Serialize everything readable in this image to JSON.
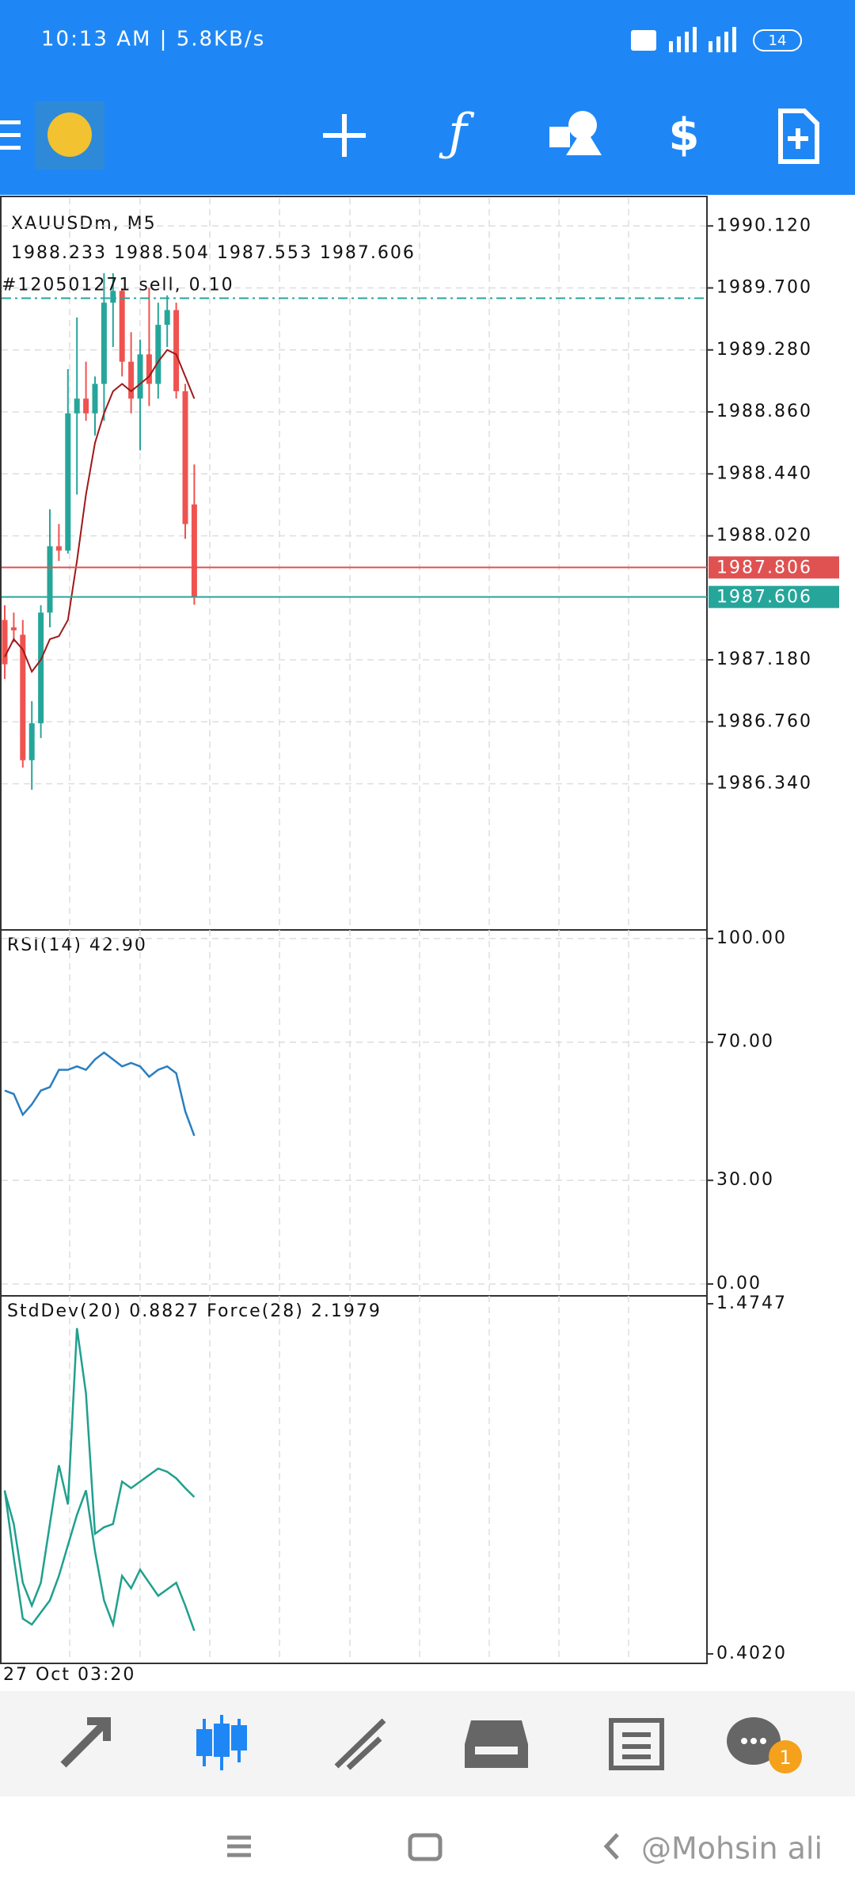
{
  "status_bar": {
    "text": "10:13 AM | 5.8KB/s",
    "battery": "14"
  },
  "chart_data": {
    "type": "candlestick",
    "symbol": "XAUUSDm, M5",
    "ohlc_text": "1988.233 1988.504 1987.553 1987.606",
    "x_label": "27 Oct 03:20",
    "ohlc": [
      [
        1987.45,
        1987.55,
        1987.05,
        1987.15
      ],
      [
        1987.4,
        1987.5,
        1987.3,
        1987.38
      ],
      [
        1987.35,
        1987.45,
        1986.45,
        1986.5
      ],
      [
        1986.5,
        1986.9,
        1986.3,
        1986.75
      ],
      [
        1986.75,
        1987.55,
        1986.65,
        1987.5
      ],
      [
        1987.5,
        1988.2,
        1987.4,
        1987.95
      ],
      [
        1987.95,
        1988.1,
        1987.85,
        1987.92
      ],
      [
        1987.92,
        1989.15,
        1987.9,
        1988.85
      ],
      [
        1988.85,
        1989.5,
        1988.3,
        1988.95
      ],
      [
        1988.95,
        1989.2,
        1988.8,
        1988.85
      ],
      [
        1988.85,
        1989.1,
        1988.7,
        1989.05
      ],
      [
        1989.05,
        1989.8,
        1988.8,
        1989.6
      ],
      [
        1989.6,
        1989.8,
        1989.3,
        1989.68
      ],
      [
        1989.68,
        1989.7,
        1989.1,
        1989.2
      ],
      [
        1989.2,
        1989.4,
        1988.85,
        1988.95
      ],
      [
        1988.95,
        1989.35,
        1988.6,
        1989.25
      ],
      [
        1989.25,
        1989.7,
        1988.9,
        1989.05
      ],
      [
        1989.05,
        1989.6,
        1988.95,
        1989.45
      ],
      [
        1989.45,
        1989.65,
        1989.3,
        1989.55
      ],
      [
        1989.55,
        1989.6,
        1988.95,
        1989.0
      ],
      [
        1989.0,
        1989.05,
        1988.0,
        1988.1
      ],
      [
        1988.233,
        1988.504,
        1987.553,
        1987.606
      ]
    ],
    "colors": {
      "up": "#26a69a",
      "down": "#ef5350"
    },
    "ma": {
      "color": "#a01818",
      "values": [
        1987.2,
        1987.32,
        1987.25,
        1987.1,
        1987.18,
        1987.32,
        1987.34,
        1987.45,
        1987.85,
        1988.3,
        1988.65,
        1988.85,
        1989.0,
        1989.05,
        1989.0,
        1989.05,
        1989.1,
        1989.2,
        1989.28,
        1989.25,
        1989.1,
        1988.95
      ]
    },
    "ylim": [
      1985.35,
      1990.32
    ],
    "yticks": [
      {
        "value": 1990.12,
        "label": "1990.120"
      },
      {
        "value": 1989.7,
        "label": "1989.700"
      },
      {
        "value": 1989.28,
        "label": "1989.280"
      },
      {
        "value": 1988.86,
        "label": "1988.860"
      },
      {
        "value": 1988.44,
        "label": "1988.440"
      },
      {
        "value": 1988.02,
        "label": "1988.020"
      },
      {
        "value": 1987.18,
        "label": "1987.180"
      },
      {
        "value": 1986.76,
        "label": "1986.760"
      },
      {
        "value": 1986.34,
        "label": "1986.340"
      }
    ],
    "grid": true,
    "price_lines": [
      {
        "value": 1987.806,
        "color": "#e05252"
      },
      {
        "value": 1987.606,
        "color": "#26a69a"
      }
    ],
    "order": {
      "label": "#120501271 sell, 0.10",
      "value": 1989.63,
      "color": "#26a69a"
    },
    "indicators": [
      {
        "type": "line",
        "label": "RSI(14) 42.90",
        "ylim": [
          -3.2,
          102.5
        ],
        "grid": true,
        "yticks": [
          {
            "value": 100,
            "label": "100.00"
          },
          {
            "value": 70,
            "label": "70.00"
          },
          {
            "value": 30,
            "label": "30.00"
          },
          {
            "value": 0,
            "label": "0.00"
          }
        ],
        "series": [
          {
            "color": "#2a7fc0",
            "values": [
              56,
              55,
              49,
              52,
              56,
              57,
              62,
              62,
              63,
              62,
              65,
              67,
              65,
              63,
              64,
              63,
              60,
              62,
              63,
              61,
              50,
              42.9
            ]
          }
        ]
      },
      {
        "type": "line",
        "label": "StdDev(20) 0.8827 Force(28) 2.1979",
        "ylim": [
          0.373,
          1.499
        ],
        "grid": false,
        "yticks": [
          {
            "value": 1.4747,
            "label": "1.4747"
          },
          {
            "value": 0.402,
            "label": "0.4020"
          }
        ],
        "series": [
          {
            "color": "#1fa08e",
            "values": [
              0.9,
              0.8,
              0.62,
              0.55,
              0.62,
              0.8,
              0.98,
              0.86,
              1.4,
              1.2,
              0.77,
              0.79,
              0.8,
              0.93,
              0.91,
              0.93,
              0.95,
              0.97,
              0.96,
              0.94,
              0.91,
              0.8827
            ]
          },
          {
            "color": "#1fa08e",
            "values": [
              0.903,
              0.697,
              0.51,
              0.492,
              0.529,
              0.566,
              0.641,
              0.735,
              0.828,
              0.903,
              0.716,
              0.566,
              0.492,
              0.641,
              0.603,
              0.66,
              0.62,
              0.58,
              0.6,
              0.62,
              0.55,
              0.473
            ]
          }
        ]
      }
    ]
  },
  "bottom_nav": {
    "badge": "1"
  },
  "watermark": "@Mohsin ali"
}
